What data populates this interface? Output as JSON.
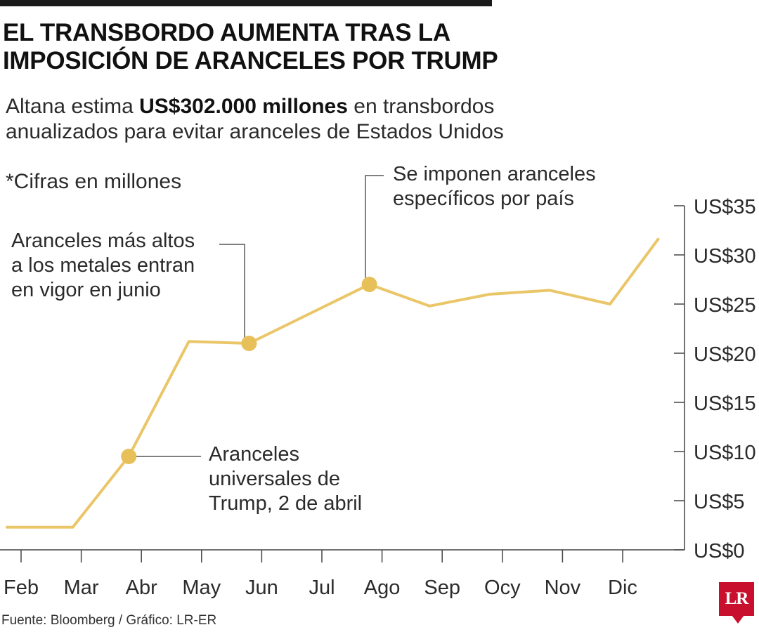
{
  "header": {
    "title": "EL TRANSBORDO AUMENTA TRAS LA IMPOSICIÓN DE ARANCELES POR TRUMP",
    "subtitle_pre": "Altana estima ",
    "subtitle_bold": "US$302.000 millones",
    "subtitle_post": " en transbordos anualizados para evitar aranceles de Estados Unidos",
    "note": "*Cifras en millones"
  },
  "annotations": {
    "metals": "Aranceles más altos\na los metales entran\nen vigor en junio",
    "country": "Se imponen aranceles\nespecíficos por país",
    "universal": "Aranceles\nuniversales de\nTrump, 2 de abril"
  },
  "footer": {
    "source": "Fuente: Bloomberg / Gráfico: LR-ER",
    "logo": "LR"
  },
  "colors": {
    "line": "#EAC668",
    "marker": "#E8C05A",
    "axis": "#444444",
    "logo": "#c8102e"
  },
  "chart_data": {
    "type": "line",
    "categories": [
      "Feb",
      "Mar",
      "Abr",
      "May",
      "Jun",
      "Jul",
      "Ago",
      "Sep",
      "Ocy",
      "Nov",
      "Dic"
    ],
    "y_ticks": [
      "US$0",
      "US$5",
      "US$10",
      "US$15",
      "US$20",
      "US$25",
      "US$30",
      "US$35"
    ],
    "ylim": [
      0,
      35
    ],
    "y_axis_side": "right",
    "grid": false,
    "series": [
      {
        "points": [
          {
            "x": "Feb",
            "y": 2.3
          },
          {
            "x": "Mar",
            "y": 2.3
          },
          {
            "x": "Abr",
            "y": 9.5
          },
          {
            "x": "May",
            "y": 21.2
          },
          {
            "x": "Jun",
            "y": 21.0
          },
          {
            "x": "Jul",
            "y": 24.0
          },
          {
            "x": "Ago",
            "y": 27.0
          },
          {
            "x": "Sep",
            "y": 24.8
          },
          {
            "x": "Ocy",
            "y": 26.0
          },
          {
            "x": "Nov",
            "y": 26.4
          },
          {
            "x": "Dic",
            "y": 25.0
          },
          {
            "x": "Dic+",
            "y": 31.6
          }
        ]
      }
    ],
    "markers": [
      {
        "x": "Abr",
        "y": 9.5,
        "label_key": "universal"
      },
      {
        "x": "Jun",
        "y": 21.0,
        "label_key": "metals"
      },
      {
        "x": "Ago",
        "y": 27.0,
        "label_key": "country"
      }
    ]
  }
}
